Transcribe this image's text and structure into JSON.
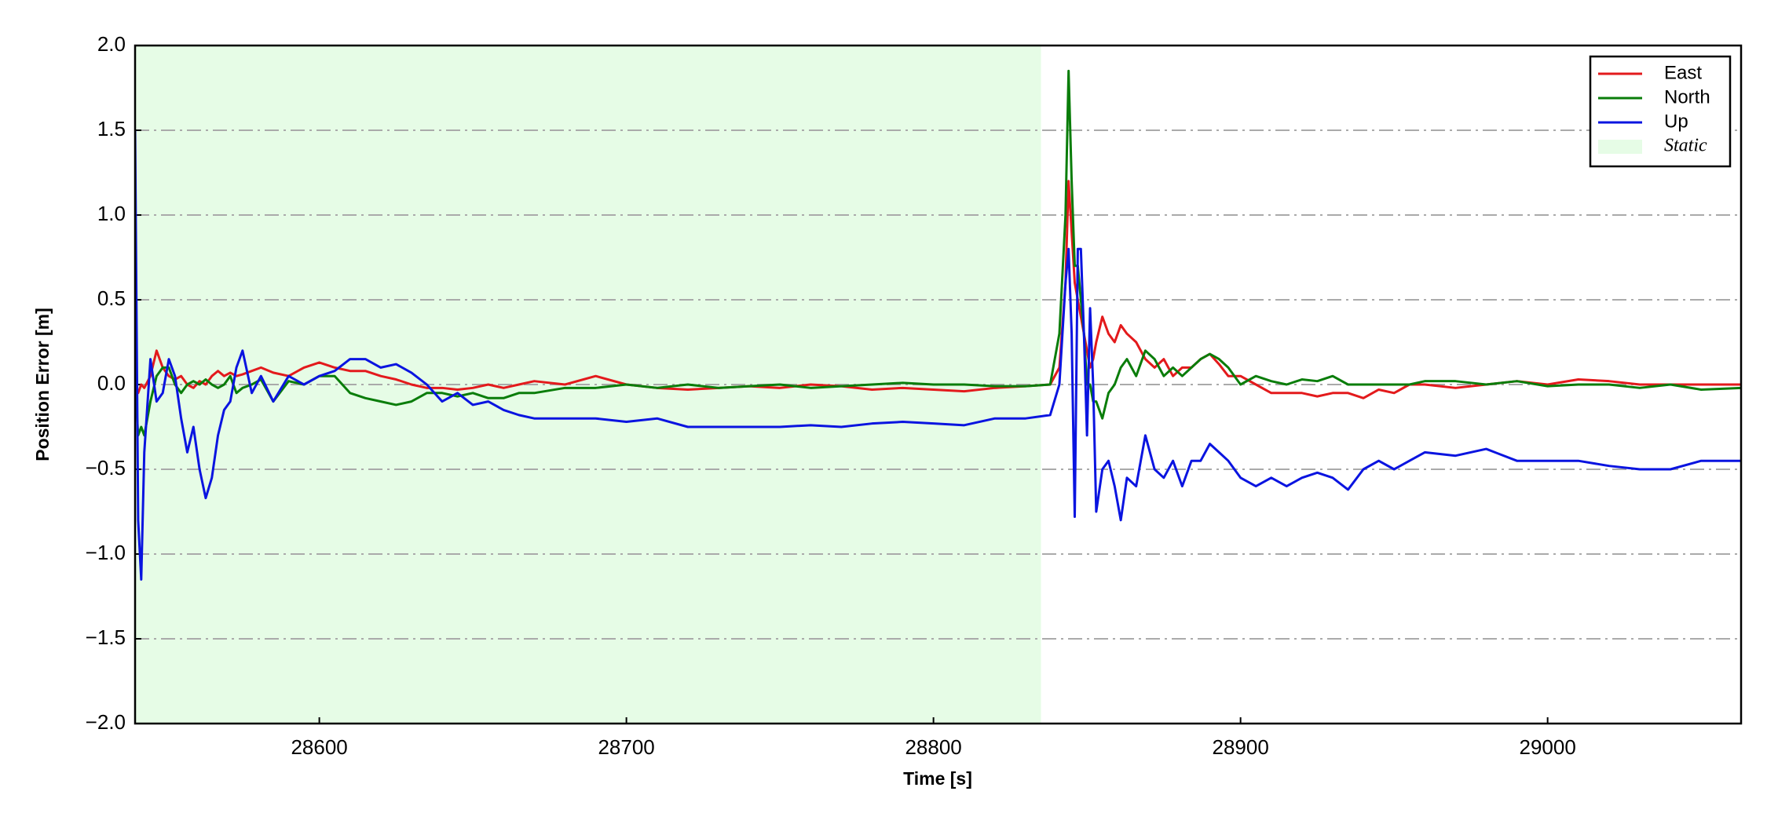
{
  "chart_data": {
    "type": "line",
    "xlabel": "Time [s]",
    "ylabel": "Position Error [m]",
    "x": [
      28540,
      28541,
      28542,
      28543,
      28545,
      28547,
      28549,
      28551,
      28553,
      28555,
      28557,
      28559,
      28561,
      28563,
      28565,
      28567,
      28569,
      28571,
      28573,
      28575,
      28578,
      28581,
      28585,
      28590,
      28595,
      28600,
      28605,
      28610,
      28615,
      28620,
      28625,
      28630,
      28635,
      28640,
      28645,
      28650,
      28655,
      28660,
      28665,
      28670,
      28680,
      28690,
      28700,
      28710,
      28720,
      28730,
      28740,
      28750,
      28760,
      28770,
      28780,
      28790,
      28800,
      28810,
      28820,
      28830,
      28838,
      28841,
      28843,
      28844,
      28845,
      28846,
      28847,
      28848,
      28849,
      28850,
      28851,
      28852,
      28853,
      28855,
      28857,
      28859,
      28861,
      28863,
      28866,
      28869,
      28872,
      28875,
      28878,
      28881,
      28884,
      28887,
      28890,
      28893,
      28896,
      28900,
      28905,
      28910,
      28915,
      28920,
      28925,
      28930,
      28935,
      28940,
      28945,
      28950,
      28955,
      28960,
      28970,
      28980,
      28990,
      29000,
      29010,
      29020,
      29030,
      29040,
      29050,
      29063
    ],
    "series": [
      {
        "name": "East",
        "color": "#e31a1c",
        "values": [
          0.0,
          -0.05,
          0.0,
          -0.02,
          0.05,
          0.2,
          0.1,
          0.05,
          0.03,
          0.05,
          0.0,
          -0.02,
          0.02,
          0.0,
          0.05,
          0.08,
          0.05,
          0.07,
          0.05,
          0.06,
          0.08,
          0.1,
          0.07,
          0.05,
          0.1,
          0.13,
          0.1,
          0.08,
          0.08,
          0.05,
          0.03,
          0.0,
          -0.02,
          -0.02,
          -0.03,
          -0.02,
          0.0,
          -0.02,
          0.0,
          0.02,
          0.0,
          0.05,
          0.0,
          -0.02,
          -0.03,
          -0.02,
          -0.01,
          -0.02,
          0.0,
          -0.01,
          -0.03,
          -0.02,
          -0.03,
          -0.04,
          -0.02,
          -0.01,
          0.0,
          0.1,
          0.6,
          1.2,
          0.9,
          0.6,
          0.5,
          0.4,
          0.3,
          0.2,
          0.1,
          0.15,
          0.25,
          0.4,
          0.3,
          0.25,
          0.35,
          0.3,
          0.25,
          0.15,
          0.1,
          0.15,
          0.05,
          0.1,
          0.1,
          0.15,
          0.18,
          0.12,
          0.05,
          0.05,
          0.0,
          -0.05,
          -0.05,
          -0.05,
          -0.07,
          -0.05,
          -0.05,
          -0.08,
          -0.03,
          -0.05,
          0.0,
          0.0,
          -0.02,
          0.0,
          0.02,
          0.0,
          0.03,
          0.02,
          0.0,
          0.0,
          0.0,
          0.0
        ]
      },
      {
        "name": "North",
        "color": "#0a7d0a",
        "values": [
          0.0,
          -0.3,
          -0.25,
          -0.3,
          -0.1,
          0.05,
          0.1,
          0.1,
          0.0,
          -0.05,
          0.0,
          0.02,
          0.0,
          0.03,
          0.0,
          -0.02,
          0.0,
          0.05,
          -0.05,
          -0.02,
          0.0,
          0.03,
          -0.1,
          0.02,
          0.0,
          0.05,
          0.05,
          -0.05,
          -0.08,
          -0.1,
          -0.12,
          -0.1,
          -0.05,
          -0.05,
          -0.07,
          -0.05,
          -0.08,
          -0.08,
          -0.05,
          -0.05,
          -0.02,
          -0.02,
          0.0,
          -0.02,
          0.0,
          -0.02,
          -0.01,
          0.0,
          -0.02,
          -0.01,
          0.0,
          0.01,
          0.0,
          0.0,
          -0.01,
          -0.01,
          0.0,
          0.3,
          1.0,
          1.85,
          1.2,
          0.7,
          0.7,
          0.5,
          0.3,
          0.0,
          0.0,
          -0.1,
          -0.1,
          -0.2,
          -0.05,
          0.0,
          0.1,
          0.15,
          0.05,
          0.2,
          0.15,
          0.05,
          0.1,
          0.05,
          0.1,
          0.15,
          0.18,
          0.15,
          0.1,
          0.0,
          0.05,
          0.02,
          0.0,
          0.03,
          0.02,
          0.05,
          0.0,
          0.0,
          0.0,
          0.0,
          0.0,
          0.02,
          0.02,
          0.0,
          0.02,
          -0.01,
          0.0,
          0.0,
          -0.02,
          0.0,
          -0.03,
          -0.02
        ]
      },
      {
        "name": "Up",
        "color": "#0a14e0",
        "values": [
          1.5,
          -0.8,
          -1.15,
          -0.4,
          0.15,
          -0.1,
          -0.05,
          0.15,
          0.05,
          -0.2,
          -0.4,
          -0.25,
          -0.5,
          -0.67,
          -0.55,
          -0.3,
          -0.15,
          -0.1,
          0.1,
          0.2,
          -0.05,
          0.05,
          -0.1,
          0.05,
          0.0,
          0.05,
          0.08,
          0.15,
          0.15,
          0.1,
          0.12,
          0.07,
          0.0,
          -0.1,
          -0.05,
          -0.12,
          -0.1,
          -0.15,
          -0.18,
          -0.2,
          -0.2,
          -0.2,
          -0.22,
          -0.2,
          -0.25,
          -0.25,
          -0.25,
          -0.25,
          -0.24,
          -0.25,
          -0.23,
          -0.22,
          -0.23,
          -0.24,
          -0.2,
          -0.2,
          -0.18,
          0.0,
          0.6,
          0.8,
          0.3,
          -0.78,
          0.8,
          0.8,
          0.3,
          -0.3,
          0.45,
          0.0,
          -0.75,
          -0.5,
          -0.45,
          -0.6,
          -0.8,
          -0.55,
          -0.6,
          -0.3,
          -0.5,
          -0.55,
          -0.45,
          -0.6,
          -0.45,
          -0.45,
          -0.35,
          -0.4,
          -0.45,
          -0.55,
          -0.6,
          -0.55,
          -0.6,
          -0.55,
          -0.52,
          -0.55,
          -0.62,
          -0.5,
          -0.45,
          -0.5,
          -0.45,
          -0.4,
          -0.42,
          -0.38,
          -0.45,
          -0.45,
          -0.45,
          -0.48,
          -0.5,
          -0.5,
          -0.45,
          -0.45
        ]
      }
    ],
    "shade": {
      "label": "Static",
      "color": "#e6fce6",
      "x0": 28540,
      "x1": 28835
    },
    "xlim": [
      28540,
      29063
    ],
    "ylim": [
      -2.0,
      2.0
    ],
    "xticks": [
      28600,
      28700,
      28800,
      28900,
      29000
    ],
    "yticks": [
      {
        "value": -2.0,
        "label": "−2.0"
      },
      {
        "value": -1.5,
        "label": "−1.5"
      },
      {
        "value": -1.0,
        "label": "−1.0"
      },
      {
        "value": -0.5,
        "label": "−0.5"
      },
      {
        "value": 0.0,
        "label": "0.0"
      },
      {
        "value": 0.5,
        "label": "0.5"
      },
      {
        "value": 1.0,
        "label": "1.0"
      },
      {
        "value": 1.5,
        "label": "1.5"
      },
      {
        "value": 2.0,
        "label": "2.0"
      }
    ],
    "grid": true,
    "legend": "upper right"
  }
}
